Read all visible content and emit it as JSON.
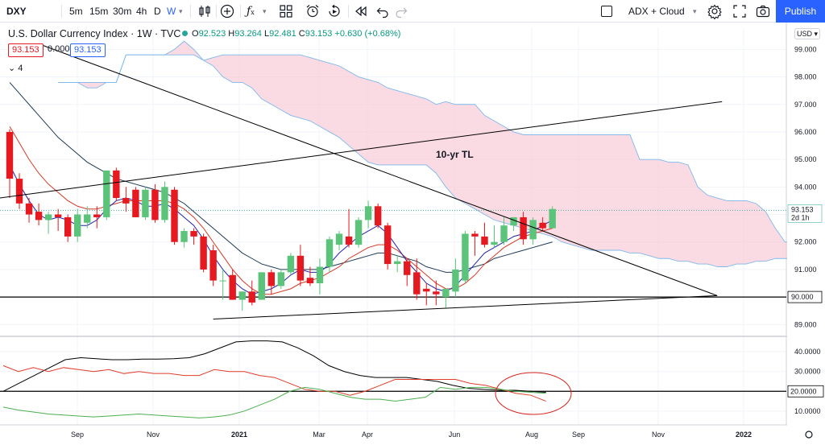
{
  "toolbar": {
    "symbol": "DXY",
    "intervals": [
      "5m",
      "15m",
      "30m",
      "4h",
      "D",
      "W"
    ],
    "active_interval": "W",
    "indicators_label": "ADX + Cloud",
    "publish_label": "Publish"
  },
  "legend": {
    "title": "U.S. Dollar Currency Index · 1W · TVC",
    "ohlc": {
      "o_key": "O",
      "o": "92.523",
      "h_key": "H",
      "h": "93.264",
      "l_key": "L",
      "l": "92.481",
      "c_key": "C",
      "c": "93.153",
      "change": "+0.630 (+0.68%)"
    },
    "value_red": "93.153",
    "value_zero": "0.000",
    "value_blue": "93.153",
    "indicator_count": "4"
  },
  "price_axis": {
    "currency": "USD",
    "last_price": "93.153",
    "countdown": "2d 1h",
    "hline_label": "90.000"
  },
  "annotation": "10-yr TL",
  "adx_axis": {
    "hline_label": "20.0000"
  },
  "colors": {
    "up": "#26a69a",
    "up_candle": "#5cc47a",
    "down": "#e5191f",
    "cloud": "#f8c7d4",
    "cloud_edge": "#7fb8ea",
    "tenkan": "#2323a8",
    "kijun": "#d33a28",
    "ma": "#1f3a55",
    "adx": "#000000",
    "di_plus": "#4caf50",
    "di_minus": "#e03c2b",
    "circle": "#d6231c",
    "accent": "#2962ff"
  },
  "chart_data": [
    {
      "type": "candlestick",
      "title": "U.S. Dollar Currency Index · 1W · TVC",
      "y_ticks": [
        89,
        90,
        91,
        92,
        93,
        94,
        95,
        96,
        97,
        98,
        99
      ],
      "ylim": [
        88.6,
        99.8
      ],
      "x_tick_labels": [
        "Sep",
        "Nov",
        "2021",
        "Mar",
        "Apr",
        "Jun",
        "Aug",
        "Sep",
        "Nov",
        "2022"
      ],
      "candles": [
        {
          "o": 96.0,
          "h": 96.1,
          "l": 93.6,
          "c": 94.3
        },
        {
          "o": 94.3,
          "h": 94.5,
          "l": 93.2,
          "c": 93.4
        },
        {
          "o": 93.4,
          "h": 93.6,
          "l": 92.7,
          "c": 93.0
        },
        {
          "o": 93.1,
          "h": 93.4,
          "l": 92.6,
          "c": 92.8
        },
        {
          "o": 92.8,
          "h": 93.1,
          "l": 92.3,
          "c": 93.0
        },
        {
          "o": 93.0,
          "h": 93.2,
          "l": 92.4,
          "c": 92.9
        },
        {
          "o": 92.9,
          "h": 93.0,
          "l": 92.0,
          "c": 92.2
        },
        {
          "o": 92.2,
          "h": 93.2,
          "l": 92.0,
          "c": 93.0
        },
        {
          "o": 92.7,
          "h": 93.3,
          "l": 92.5,
          "c": 93.0
        },
        {
          "o": 93.0,
          "h": 93.3,
          "l": 92.5,
          "c": 92.9
        },
        {
          "o": 92.9,
          "h": 94.6,
          "l": 92.8,
          "c": 94.6
        },
        {
          "o": 94.6,
          "h": 94.7,
          "l": 93.5,
          "c": 93.6
        },
        {
          "o": 93.6,
          "h": 94.0,
          "l": 93.1,
          "c": 93.4
        },
        {
          "o": 93.9,
          "h": 94.0,
          "l": 92.9,
          "c": 92.9
        },
        {
          "o": 92.9,
          "h": 94.0,
          "l": 92.8,
          "c": 93.9
        },
        {
          "o": 93.9,
          "h": 94.1,
          "l": 92.7,
          "c": 92.8
        },
        {
          "o": 92.8,
          "h": 94.2,
          "l": 92.7,
          "c": 94.0
        },
        {
          "o": 93.9,
          "h": 94.0,
          "l": 91.9,
          "c": 92.0
        },
        {
          "o": 92.0,
          "h": 92.5,
          "l": 91.8,
          "c": 92.4
        },
        {
          "o": 92.4,
          "h": 92.5,
          "l": 91.9,
          "c": 92.2
        },
        {
          "o": 92.2,
          "h": 92.3,
          "l": 90.9,
          "c": 91.0
        },
        {
          "o": 91.7,
          "h": 91.9,
          "l": 90.4,
          "c": 90.6
        },
        {
          "o": 90.6,
          "h": 91.0,
          "l": 89.9,
          "c": 90.6
        },
        {
          "o": 90.8,
          "h": 91.0,
          "l": 89.9,
          "c": 89.9
        },
        {
          "o": 89.9,
          "h": 90.2,
          "l": 89.5,
          "c": 90.2
        },
        {
          "o": 90.2,
          "h": 90.6,
          "l": 89.7,
          "c": 89.8
        },
        {
          "o": 89.9,
          "h": 90.9,
          "l": 89.9,
          "c": 90.9
        },
        {
          "o": 90.9,
          "h": 91.0,
          "l": 90.1,
          "c": 90.4
        },
        {
          "o": 90.4,
          "h": 91.0,
          "l": 90.3,
          "c": 90.9
        },
        {
          "o": 90.9,
          "h": 91.6,
          "l": 90.8,
          "c": 91.5
        },
        {
          "o": 91.5,
          "h": 91.9,
          "l": 90.4,
          "c": 90.6
        },
        {
          "o": 90.7,
          "h": 91.1,
          "l": 90.4,
          "c": 90.5
        },
        {
          "o": 90.5,
          "h": 91.4,
          "l": 90.1,
          "c": 91.1
        },
        {
          "o": 91.1,
          "h": 92.2,
          "l": 90.9,
          "c": 92.1
        },
        {
          "o": 91.9,
          "h": 92.4,
          "l": 91.7,
          "c": 92.3
        },
        {
          "o": 92.2,
          "h": 93.2,
          "l": 91.8,
          "c": 91.9
        },
        {
          "o": 91.9,
          "h": 92.9,
          "l": 91.8,
          "c": 92.8
        },
        {
          "o": 92.8,
          "h": 93.5,
          "l": 92.5,
          "c": 93.3
        },
        {
          "o": 93.3,
          "h": 93.4,
          "l": 92.5,
          "c": 92.6
        },
        {
          "o": 92.6,
          "h": 92.7,
          "l": 91.0,
          "c": 91.2
        },
        {
          "o": 91.2,
          "h": 91.5,
          "l": 90.9,
          "c": 91.3
        },
        {
          "o": 91.3,
          "h": 91.4,
          "l": 90.4,
          "c": 90.8
        },
        {
          "o": 90.9,
          "h": 91.4,
          "l": 89.9,
          "c": 90.1
        },
        {
          "o": 90.3,
          "h": 90.5,
          "l": 89.7,
          "c": 90.2
        },
        {
          "o": 90.2,
          "h": 90.6,
          "l": 89.7,
          "c": 90.1
        },
        {
          "o": 90.0,
          "h": 90.3,
          "l": 89.6,
          "c": 90.3
        },
        {
          "o": 90.2,
          "h": 91.4,
          "l": 90.0,
          "c": 91.0
        },
        {
          "o": 90.6,
          "h": 92.4,
          "l": 90.5,
          "c": 92.3
        },
        {
          "o": 92.3,
          "h": 92.4,
          "l": 91.5,
          "c": 92.2
        },
        {
          "o": 92.2,
          "h": 92.7,
          "l": 91.8,
          "c": 91.9
        },
        {
          "o": 91.9,
          "h": 92.6,
          "l": 91.8,
          "c": 92.0
        },
        {
          "o": 92.0,
          "h": 92.9,
          "l": 91.9,
          "c": 92.6
        },
        {
          "o": 92.6,
          "h": 92.9,
          "l": 92.4,
          "c": 92.9
        },
        {
          "o": 92.9,
          "h": 93.1,
          "l": 91.9,
          "c": 92.1
        },
        {
          "o": 92.1,
          "h": 92.9,
          "l": 91.9,
          "c": 92.8
        },
        {
          "o": 92.7,
          "h": 92.9,
          "l": 92.4,
          "c": 92.5
        },
        {
          "o": 92.5,
          "h": 93.3,
          "l": 92.5,
          "c": 93.2
        }
      ],
      "tenkan": [
        94.8,
        94.1,
        93.5,
        93.0,
        92.8,
        92.9,
        92.8,
        92.6,
        92.6,
        92.8,
        93.2,
        93.5,
        93.6,
        93.5,
        93.3,
        93.3,
        93.4,
        93.2,
        92.9,
        92.6,
        92.1,
        91.5,
        91.0,
        90.6,
        90.3,
        90.1,
        90.2,
        90.3,
        90.5,
        90.8,
        91.0,
        90.9,
        90.9,
        91.2,
        91.6,
        91.9,
        92.2,
        92.4,
        92.6,
        92.3,
        91.8,
        91.3,
        90.9,
        90.5,
        90.3,
        90.2,
        90.4,
        90.8,
        91.2,
        91.6,
        91.8,
        92.0,
        92.2,
        92.3,
        92.4,
        92.6,
        92.8
      ],
      "kijun": [
        96.2,
        95.6,
        95.0,
        94.5,
        94.1,
        93.8,
        93.5,
        93.3,
        93.2,
        93.2,
        93.3,
        93.4,
        93.5,
        93.5,
        93.5,
        93.5,
        93.5,
        93.4,
        93.2,
        92.9,
        92.5,
        92.0,
        91.5,
        91.0,
        90.6,
        90.3,
        90.1,
        90.1,
        90.2,
        90.3,
        90.5,
        90.6,
        90.7,
        90.9,
        91.1,
        91.4,
        91.6,
        91.8,
        91.9,
        91.9,
        91.7,
        91.4,
        91.1,
        90.8,
        90.5,
        90.3,
        90.3,
        90.5,
        90.8,
        91.2,
        91.5,
        91.8,
        92.0,
        92.2,
        92.3,
        92.4,
        92.5
      ],
      "ma": [
        97.8,
        97.4,
        97.0,
        96.6,
        96.2,
        95.8,
        95.5,
        95.2,
        94.9,
        94.7,
        94.5,
        94.3,
        94.2,
        94.1,
        94.0,
        93.9,
        93.8,
        93.6,
        93.4,
        93.1,
        92.8,
        92.5,
        92.2,
        91.9,
        91.6,
        91.4,
        91.2,
        91.1,
        91.0,
        91.0,
        91.0,
        91.0,
        91.0,
        91.1,
        91.2,
        91.3,
        91.4,
        91.5,
        91.6,
        91.6,
        91.5,
        91.4,
        91.3,
        91.1,
        91.0,
        90.9,
        90.9,
        91.0,
        91.1,
        91.2,
        91.4,
        91.5,
        91.6,
        91.7,
        91.8,
        91.9,
        92.0
      ],
      "cloud_top": [
        97.8,
        97.8,
        97.8,
        97.8,
        97.8,
        97.8,
        97.8,
        98.8,
        98.8,
        98.8,
        98.8,
        98.8,
        98.8,
        98.8,
        98.8,
        98.6,
        98.7,
        98.8,
        98.8,
        98.8,
        98.8,
        98.8,
        98.8,
        98.8,
        98.8,
        98.8,
        98.7,
        98.6,
        98.5,
        98.4,
        98.2,
        98.0,
        97.9,
        97.8,
        97.6,
        97.5,
        97.4,
        97.3,
        97.2,
        97.0,
        97.1,
        97.0,
        97.0,
        97.0,
        96.6,
        96.4,
        96.2,
        96.0,
        95.9,
        95.9,
        95.9,
        95.9,
        95.9,
        95.9,
        95.9,
        95.9,
        95.9,
        95.9,
        95.9,
        95.9,
        95.0,
        95.0,
        95.0,
        94.9,
        94.9,
        94.8,
        94.0,
        93.7,
        93.6,
        93.5,
        93.5,
        93.5,
        93.4,
        93.1,
        92.5,
        92.0,
        92.0,
        92.0,
        92.0,
        92.0
      ],
      "cloud_bottom": [
        97.8,
        97.8,
        97.8,
        97.6,
        97.6,
        97.8,
        97.8,
        98.8,
        98.8,
        98.8,
        98.8,
        98.8,
        99.0,
        99.3,
        99.0,
        98.6,
        98.4,
        98.0,
        97.8,
        97.8,
        97.6,
        97.2,
        97.0,
        96.8,
        96.6,
        96.5,
        96.4,
        96.2,
        96.0,
        95.8,
        95.5,
        95.2,
        94.9,
        94.8,
        94.8,
        94.8,
        94.8,
        94.8,
        94.8,
        94.5,
        94.0,
        93.6,
        93.4,
        93.2,
        93.0,
        92.8,
        92.7,
        92.6,
        92.5,
        92.4,
        92.3,
        92.2,
        92.0,
        91.9,
        91.8,
        91.7,
        91.7,
        91.7,
        91.7,
        91.6,
        91.6,
        91.5,
        91.4,
        91.4,
        91.3,
        91.3,
        91.2,
        91.2,
        91.1,
        91.1,
        91.2,
        91.2,
        91.3,
        91.3,
        91.4,
        91.4,
        91.4,
        91.4,
        91.5,
        91.8
      ],
      "horizontal_line": 90.0,
      "trendlines": [
        {
          "x": [
            -1,
            73.5
          ],
          "y": [
            93.6,
            97.1
          ]
        },
        {
          "x": [
            3,
            73
          ],
          "y": [
            99.2,
            90.05
          ]
        },
        {
          "x": [
            21,
            73
          ],
          "y": [
            89.2,
            90.05
          ]
        }
      ],
      "last_price": 93.153
    },
    {
      "type": "line",
      "indicator": "ADX",
      "y_ticks": [
        10,
        20,
        30,
        40
      ],
      "ylim": [
        3,
        47
      ],
      "horizontal_line": 20.0,
      "series": [
        {
          "values": [
            20,
            24,
            28,
            32,
            36,
            37,
            36.5,
            36,
            36,
            36.3,
            36.3,
            36.5,
            37,
            39,
            42,
            45,
            45.5,
            45.5,
            45,
            42,
            38,
            33,
            30,
            28,
            27,
            27,
            27,
            26,
            25,
            23,
            21.5,
            21,
            20.5,
            20.5,
            20,
            19.5
          ]
        },
        {
          "values": [
            33,
            30,
            32,
            30,
            32,
            31,
            30,
            31,
            29,
            30,
            29,
            29,
            28,
            28,
            31,
            30,
            30,
            28,
            27,
            24,
            21,
            20,
            20,
            18,
            20,
            23,
            26,
            26,
            26,
            26,
            26,
            24,
            23,
            21,
            19,
            18,
            15
          ]
        },
        {
          "values": [
            12,
            10.5,
            9.5,
            8.5,
            8,
            7.5,
            7,
            7.5,
            8,
            8.5,
            8,
            7.5,
            7,
            6.5,
            7,
            8,
            10,
            13,
            16,
            20,
            22,
            21,
            19,
            17,
            16,
            16,
            15,
            16,
            17,
            22,
            21,
            22,
            22,
            21,
            20,
            19.5,
            19
          ]
        }
      ]
    }
  ]
}
